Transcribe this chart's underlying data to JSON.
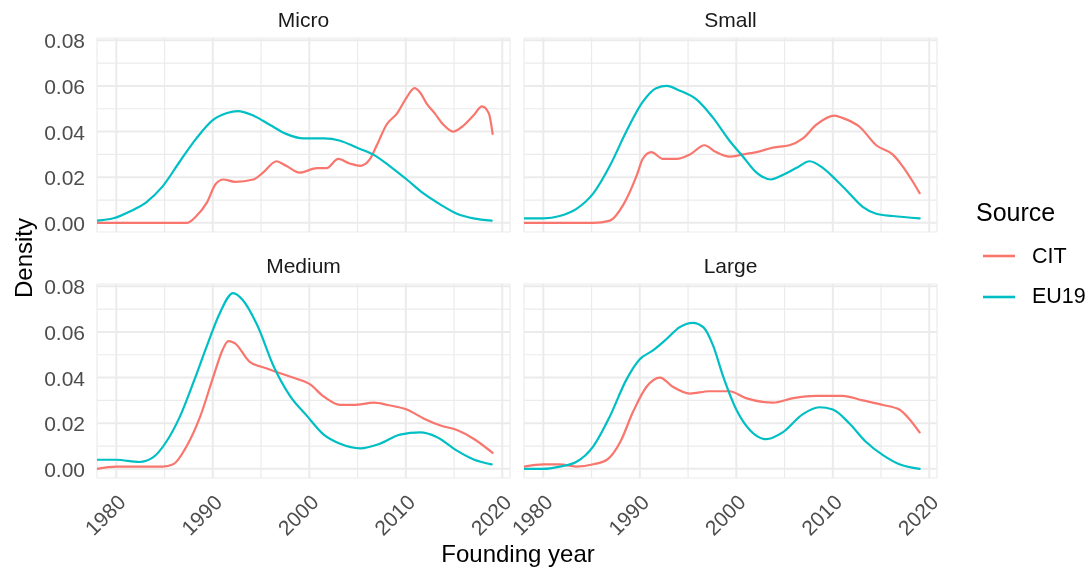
{
  "chart_data": [
    {
      "type": "line",
      "title": "Micro",
      "ylabel": "Density",
      "legend": "right",
      "legend_title": "Source",
      "xlim": [
        1978,
        2020.8
      ],
      "ylim": [
        -0.004,
        0.081
      ],
      "xticks": [
        1980,
        {
          "value": 1985,
          "label": null
        },
        1990,
        {
          "value": 1995,
          "label": null
        },
        2000,
        {
          "value": 2005,
          "label": null
        },
        2010,
        {
          "value": 2015,
          "label": null
        },
        2020
      ],
      "yticks": [
        {
          "value": 0,
          "label": "0.00"
        },
        {
          "value": 0.01,
          "label": null
        },
        {
          "value": 0.02,
          "label": "0.02"
        },
        {
          "value": 0.03,
          "label": null
        },
        {
          "value": 0.04,
          "label": "0.04"
        },
        {
          "value": 0.05,
          "label": null
        },
        {
          "value": 0.06,
          "label": "0.06"
        },
        {
          "value": 0.07,
          "label": null
        },
        {
          "value": 0.08,
          "label": "0.08"
        }
      ],
      "grid": true,
      "tick_labels": "y",
      "series": [
        {
          "name": "CIT",
          "color": "#f8766d",
          "x": [
            1978,
            1987.3,
            1988.3,
            1989.4,
            1990.3,
            1991.1,
            1992.3,
            1994.2,
            1995.2,
            1996.6,
            1997.6,
            1999.0,
            2000.8,
            2001.8,
            2003.0,
            2004.2,
            2005.3,
            2006.3,
            2007.0,
            2008.0,
            2009.1,
            2010.1,
            2010.9,
            2011.5,
            2012.2,
            2013.0,
            2013.9,
            2014.9,
            2015.8,
            2017.0,
            2017.9,
            2018.6,
            2019.0
          ],
          "values": [
            0,
            0,
            0.003,
            0.009,
            0.017,
            0.019,
            0.018,
            0.019,
            0.022,
            0.027,
            0.025,
            0.022,
            0.024,
            0.024,
            0.028,
            0.026,
            0.025,
            0.028,
            0.034,
            0.043,
            0.048,
            0.055,
            0.059,
            0.057,
            0.052,
            0.048,
            0.043,
            0.04,
            0.042,
            0.047,
            0.051,
            0.048,
            0.039
          ]
        },
        {
          "name": "EU19",
          "color": "#00bfc4",
          "x": [
            1978,
            1979.7,
            1981.4,
            1983.1,
            1984.8,
            1986.6,
            1988.3,
            1990.0,
            1991.4,
            1992.6,
            1994.2,
            1995.9,
            1997.6,
            1999.4,
            2001.5,
            2003.2,
            2004.9,
            2006.6,
            2008.3,
            2010.1,
            2011.8,
            2013.6,
            2015.3,
            2017.0,
            2018.9
          ],
          "values": [
            0.001,
            0.002,
            0.005,
            0.009,
            0.016,
            0.027,
            0.037,
            0.045,
            0.048,
            0.049,
            0.047,
            0.043,
            0.039,
            0.037,
            0.037,
            0.036,
            0.033,
            0.03,
            0.025,
            0.019,
            0.013,
            0.008,
            0.004,
            0.002,
            0.001
          ]
        }
      ]
    },
    {
      "type": "line",
      "title": "Small",
      "xlim": [
        1978,
        2020.8
      ],
      "ylim": [
        -0.004,
        0.081
      ],
      "xticks": [
        1980,
        {
          "value": 1985,
          "label": null
        },
        1990,
        {
          "value": 1995,
          "label": null
        },
        2000,
        {
          "value": 2005,
          "label": null
        },
        2010,
        {
          "value": 2015,
          "label": null
        },
        2020
      ],
      "yticks": [
        0,
        {
          "value": 0.01,
          "label": null
        },
        0.02,
        {
          "value": 0.03,
          "label": null
        },
        0.04,
        {
          "value": 0.05,
          "label": null
        },
        0.06,
        {
          "value": 0.07,
          "label": null
        },
        0.08
      ],
      "grid": true,
      "tick_labels": false,
      "series": [
        {
          "color": "#f8766d",
          "x": [
            1978,
            1980,
            1985.2,
            1986.9,
            1988.3,
            1989.7,
            1990.3,
            1991.2,
            1992.4,
            1993.8,
            1995.2,
            1996.7,
            1997.9,
            1999.3,
            2000.7,
            2002.1,
            2003.8,
            2005.5,
            2006.9,
            2008.3,
            2010.2,
            2011.0,
            2012.8,
            2014.5,
            2016.2,
            2017.2,
            2018.3,
            2019.0
          ],
          "values": [
            0,
            0,
            0,
            0.001,
            0.008,
            0.021,
            0.028,
            0.031,
            0.028,
            0.028,
            0.03,
            0.034,
            0.031,
            0.029,
            0.03,
            0.031,
            0.033,
            0.034,
            0.037,
            0.043,
            0.047,
            0.046,
            0.042,
            0.034,
            0.03,
            0.025,
            0.018,
            0.013
          ]
        },
        {
          "color": "#00bfc4",
          "x": [
            1978,
            1980,
            1981.7,
            1983.4,
            1985.2,
            1986.9,
            1988.6,
            1990.3,
            1991.7,
            1992.8,
            1994.1,
            1995.9,
            1997.6,
            1999.3,
            2000.7,
            2002.1,
            2003.6,
            2004.8,
            2006.2,
            2007.6,
            2009.0,
            2010.3,
            2011.7,
            2013.1,
            2014.5,
            2016.2,
            2019.0
          ],
          "values": [
            0.002,
            0.002,
            0.003,
            0.006,
            0.013,
            0.025,
            0.04,
            0.053,
            0.059,
            0.06,
            0.058,
            0.054,
            0.046,
            0.036,
            0.029,
            0.022,
            0.019,
            0.021,
            0.024,
            0.027,
            0.024,
            0.019,
            0.013,
            0.007,
            0.004,
            0.003,
            0.002
          ]
        }
      ]
    },
    {
      "type": "line",
      "title": "Medium",
      "xlabel": "Founding year",
      "xlim": [
        1978,
        2020.8
      ],
      "ylim": [
        -0.004,
        0.081
      ],
      "xticks": [
        1980,
        {
          "value": 1985,
          "label": null
        },
        1990,
        {
          "value": 1995,
          "label": null
        },
        2000,
        {
          "value": 2005,
          "label": null
        },
        2010,
        {
          "value": 2015,
          "label": null
        },
        2020
      ],
      "yticks": [
        {
          "value": 0,
          "label": "0.00"
        },
        {
          "value": 0.01,
          "label": null
        },
        {
          "value": 0.02,
          "label": "0.02"
        },
        {
          "value": 0.03,
          "label": null
        },
        {
          "value": 0.04,
          "label": "0.04"
        },
        {
          "value": 0.05,
          "label": null
        },
        {
          "value": 0.06,
          "label": "0.06"
        },
        {
          "value": 0.07,
          "label": null
        },
        {
          "value": 0.08,
          "label": "0.08"
        }
      ],
      "grid": true,
      "series": [
        {
          "color": "#f8766d",
          "x": [
            1978,
            1980,
            1982.4,
            1984.8,
            1985.9,
            1987.3,
            1988.7,
            1990.1,
            1991.0,
            1991.6,
            1992.3,
            1993.8,
            1995.6,
            1996.9,
            1998.3,
            2000.1,
            2001.4,
            2003.2,
            2004.6,
            2006.7,
            2008.1,
            2010.1,
            2011.9,
            2013.6,
            2015.3,
            2017.1,
            2019.0
          ],
          "values": [
            0,
            0.001,
            0.001,
            0.001,
            0.002,
            0.01,
            0.023,
            0.041,
            0.052,
            0.056,
            0.055,
            0.047,
            0.044,
            0.042,
            0.04,
            0.037,
            0.032,
            0.028,
            0.028,
            0.029,
            0.028,
            0.026,
            0.022,
            0.019,
            0.017,
            0.013,
            0.007
          ]
        },
        {
          "color": "#00bfc4",
          "x": [
            1978,
            1980,
            1982.4,
            1983.8,
            1985.2,
            1986.6,
            1988.0,
            1989.4,
            1990.7,
            1992.1,
            1993.1,
            1994.6,
            1996.3,
            1998.0,
            1999.8,
            2001.5,
            2003.2,
            2005.3,
            2007.3,
            2009.4,
            2011.5,
            2013.2,
            2015.3,
            2017.1,
            2018.9
          ],
          "values": [
            0.004,
            0.004,
            0.003,
            0.005,
            0.012,
            0.023,
            0.038,
            0.054,
            0.068,
            0.077,
            0.074,
            0.063,
            0.045,
            0.032,
            0.023,
            0.015,
            0.011,
            0.009,
            0.011,
            0.015,
            0.016,
            0.014,
            0.008,
            0.004,
            0.002
          ]
        }
      ]
    },
    {
      "type": "line",
      "title": "Large",
      "xlim": [
        1978,
        2020.8
      ],
      "ylim": [
        -0.004,
        0.081
      ],
      "xticks": [
        1980,
        {
          "value": 1985,
          "label": null
        },
        1990,
        {
          "value": 1995,
          "label": null
        },
        2000,
        {
          "value": 2005,
          "label": null
        },
        2010,
        {
          "value": 2015,
          "label": null
        },
        2020
      ],
      "yticks": [
        0,
        {
          "value": 0.01,
          "label": null
        },
        0.02,
        {
          "value": 0.03,
          "label": null
        },
        0.04,
        {
          "value": 0.05,
          "label": null
        },
        0.06,
        {
          "value": 0.07,
          "label": null
        },
        0.08
      ],
      "grid": true,
      "tick_labels": "x",
      "series": [
        {
          "color": "#f8766d",
          "x": [
            1978,
            1980,
            1981.7,
            1983.4,
            1985.2,
            1986.6,
            1988.0,
            1989.3,
            1990.7,
            1992.1,
            1993.4,
            1995.2,
            1997.2,
            1999.3,
            2001.0,
            2003.8,
            2005.9,
            2008.3,
            2011.0,
            2013.1,
            2015.2,
            2016.9,
            2017.9,
            2019.0
          ],
          "values": [
            0.001,
            0.002,
            0.002,
            0.001,
            0.002,
            0.004,
            0.012,
            0.025,
            0.036,
            0.04,
            0.036,
            0.033,
            0.034,
            0.034,
            0.031,
            0.029,
            0.031,
            0.032,
            0.032,
            0.03,
            0.028,
            0.026,
            0.022,
            0.016
          ]
        },
        {
          "color": "#00bfc4",
          "x": [
            1978,
            1980,
            1981.7,
            1983.4,
            1985.2,
            1986.9,
            1988.6,
            1990.0,
            1991.4,
            1992.8,
            1994.1,
            1995.5,
            1996.6,
            1997.6,
            1998.6,
            2000.0,
            2001.4,
            2003.1,
            2004.8,
            2006.9,
            2008.6,
            2010.0,
            2011.7,
            2013.4,
            2015.2,
            2016.9,
            2019.0
          ],
          "values": [
            0,
            0,
            0.001,
            0.003,
            0.01,
            0.023,
            0.039,
            0.048,
            0.052,
            0.057,
            0.062,
            0.064,
            0.062,
            0.054,
            0.041,
            0.026,
            0.017,
            0.013,
            0.016,
            0.024,
            0.027,
            0.026,
            0.02,
            0.012,
            0.006,
            0.002,
            0
          ]
        }
      ]
    }
  ]
}
